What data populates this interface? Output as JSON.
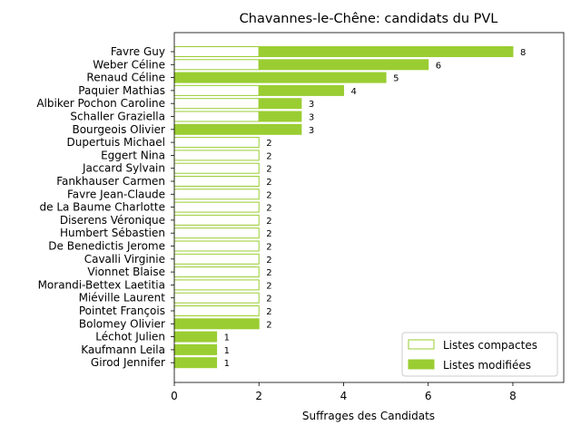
{
  "chart_data": {
    "type": "bar",
    "orientation": "horizontal",
    "stacked": true,
    "title": "Chavannes-le-Chêne: candidats du PVL",
    "xlabel": "Suffrages des Candidats",
    "xlim": [
      0,
      9.2
    ],
    "xticks": [
      "0",
      "2",
      "4",
      "6",
      "8"
    ],
    "grid": false,
    "legend_position": "lower right",
    "colors": {
      "accent": "#9acd32",
      "compact_fill": "#ffffff"
    },
    "series": [
      {
        "name": "Listes compactes",
        "style": "outline"
      },
      {
        "name": "Listes modifiées",
        "style": "filled"
      }
    ],
    "categories": [
      "Favre Guy",
      "Weber Céline",
      "Renaud Céline",
      "Paquier Mathias",
      "Albiker Pochon Caroline",
      "Schaller Graziella",
      "Bourgeois Olivier",
      "Dupertuis Michael",
      "Eggert Nina",
      "Jaccard Sylvain",
      "Fankhauser Carmen",
      "Favre Jean-Claude",
      "de La Baume Charlotte",
      "Diserens Véronique",
      "Humbert Sébastien",
      "De Benedictis Jerome",
      "Cavalli Virginie",
      "Vionnet Blaise",
      "Morandi-Bettex Laetitia",
      "Miéville Laurent",
      "Pointet François",
      "Bolomey Olivier",
      "Léchot Julien",
      "Kaufmann Leila",
      "Girod Jennifer"
    ],
    "compactes": [
      2,
      2,
      0,
      2,
      2,
      2,
      0,
      2,
      2,
      2,
      2,
      2,
      2,
      2,
      2,
      2,
      2,
      2,
      2,
      2,
      2,
      0,
      0,
      0,
      0
    ],
    "modifiees": [
      6,
      4,
      5,
      2,
      1,
      1,
      3,
      0,
      0,
      0,
      0,
      0,
      0,
      0,
      0,
      0,
      0,
      0,
      0,
      0,
      0,
      2,
      1,
      1,
      1
    ],
    "totals": [
      "8",
      "6",
      "5",
      "4",
      "3",
      "3",
      "3",
      "2",
      "2",
      "2",
      "2",
      "2",
      "2",
      "2",
      "2",
      "2",
      "2",
      "2",
      "2",
      "2",
      "2",
      "2",
      "1",
      "1",
      "1"
    ]
  }
}
